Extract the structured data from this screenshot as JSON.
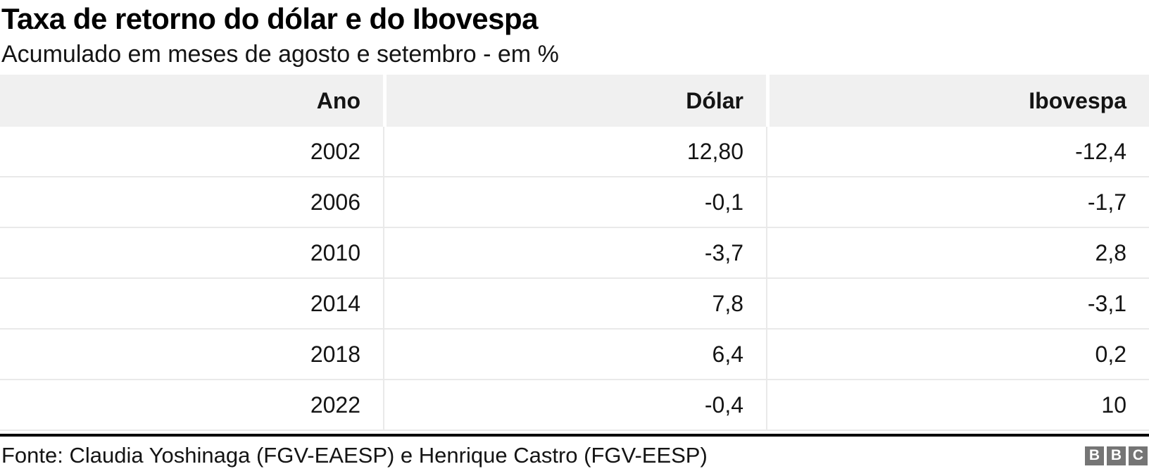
{
  "header": {
    "title": "Taxa de retorno do dólar e do Ibovespa",
    "subtitle": "Acumulado em meses de agosto e setembro - em %"
  },
  "table": {
    "columns": [
      "Ano",
      "Dólar",
      "Ibovespa"
    ],
    "rows": [
      [
        "2002",
        "12,80",
        "-12,4"
      ],
      [
        "2006",
        "-0,1",
        "-1,7"
      ],
      [
        "2010",
        "-3,7",
        "2,8"
      ],
      [
        "2014",
        "7,8",
        "-3,1"
      ],
      [
        "2018",
        "6,4",
        "0,2"
      ],
      [
        "2022",
        "-0,4",
        "10"
      ]
    ]
  },
  "chart_data": {
    "type": "table",
    "title": "Taxa de retorno do dólar e do Ibovespa",
    "subtitle": "Acumulado em meses de agosto e setembro - em %",
    "unit": "%",
    "columns": [
      "Ano",
      "Dólar",
      "Ibovespa"
    ],
    "categories": [
      2002,
      2006,
      2010,
      2014,
      2018,
      2022
    ],
    "series": [
      {
        "name": "Dólar",
        "values": [
          12.8,
          -0.1,
          -3.7,
          7.8,
          6.4,
          -0.4
        ]
      },
      {
        "name": "Ibovespa",
        "values": [
          -12.4,
          -1.7,
          2.8,
          -3.1,
          0.2,
          10
        ]
      }
    ]
  },
  "footer": {
    "source": "Fonte: Claudia Yoshinaga (FGV-EAESP) e Henrique Castro (FGV-EESP)",
    "logo_letters": [
      "B",
      "B",
      "C"
    ]
  },
  "colors": {
    "header_bg": "#f0f0f0",
    "row_border": "#e9e9e9",
    "divider": "#000000",
    "logo_bg": "#757575",
    "text": "#141414"
  }
}
